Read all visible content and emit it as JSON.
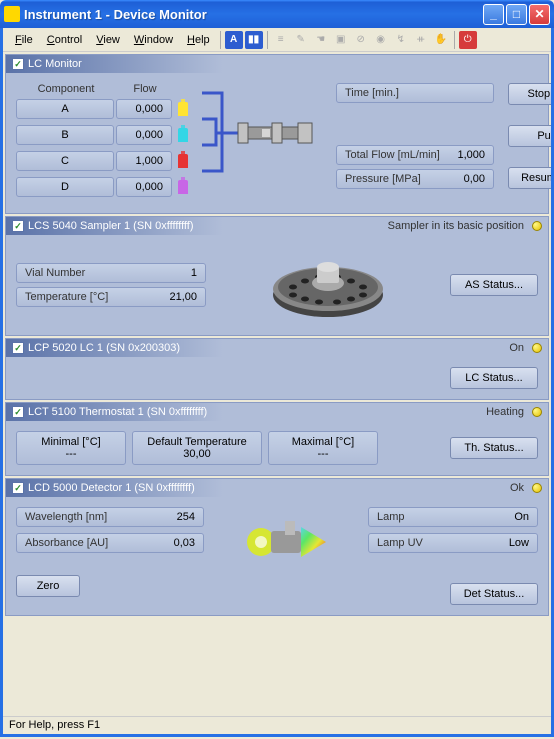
{
  "window": {
    "title": "Instrument 1 - Device Monitor"
  },
  "menu": {
    "file": "File",
    "control": "Control",
    "view": "View",
    "window": "Window",
    "help": "Help"
  },
  "lc_monitor": {
    "title": "LC Monitor",
    "headers": {
      "component": "Component",
      "flow": "Flow"
    },
    "rows": [
      {
        "label": "A",
        "flow": "0,000",
        "color": "#ffe433"
      },
      {
        "label": "B",
        "flow": "0,000",
        "color": "#33d6e6"
      },
      {
        "label": "C",
        "flow": "1,000",
        "color": "#e63333"
      },
      {
        "label": "D",
        "flow": "0,000",
        "color": "#c866e6"
      }
    ],
    "time_label": "Time [min.]",
    "total_flow_label": "Total Flow [mL/min]",
    "total_flow_value": "1,000",
    "pressure_label": "Pressure [MPa]",
    "pressure_value": "0,00",
    "buttons": {
      "stop": "Stop Flow",
      "purge": "Purge",
      "resume": "Resume Idle"
    }
  },
  "sampler": {
    "title": "LCS 5040 Sampler 1 (SN 0xffffffff)",
    "status": "Sampler in its basic position",
    "vial_label": "Vial Number",
    "vial_value": "1",
    "temp_label": "Temperature [°C]",
    "temp_value": "21,00",
    "button": "AS Status..."
  },
  "lcp": {
    "title": "LCP 5020 LC 1 (SN 0x200303)",
    "status": "On",
    "button": "LC Status..."
  },
  "thermo": {
    "title": "LCT 5100 Thermostat 1 (SN 0xffffffff)",
    "status": "Heating",
    "min_label": "Minimal [°C]",
    "min_value": "---",
    "def_label": "Default Temperature",
    "def_value": "30,00",
    "max_label": "Maximal [°C]",
    "max_value": "---",
    "button": "Th. Status..."
  },
  "detector": {
    "title": "LCD 5000 Detector 1 (SN 0xffffffff)",
    "status": "Ok",
    "wavelength_label": "Wavelength [nm]",
    "wavelength_value": "254",
    "absorbance_label": "Absorbance [AU]",
    "absorbance_value": "0,03",
    "zero": "Zero",
    "lamp_label": "Lamp",
    "lamp_value": "On",
    "lampuv_label": "Lamp UV",
    "lampuv_value": "Low",
    "button": "Det Status..."
  },
  "statusbar": "For Help, press F1"
}
